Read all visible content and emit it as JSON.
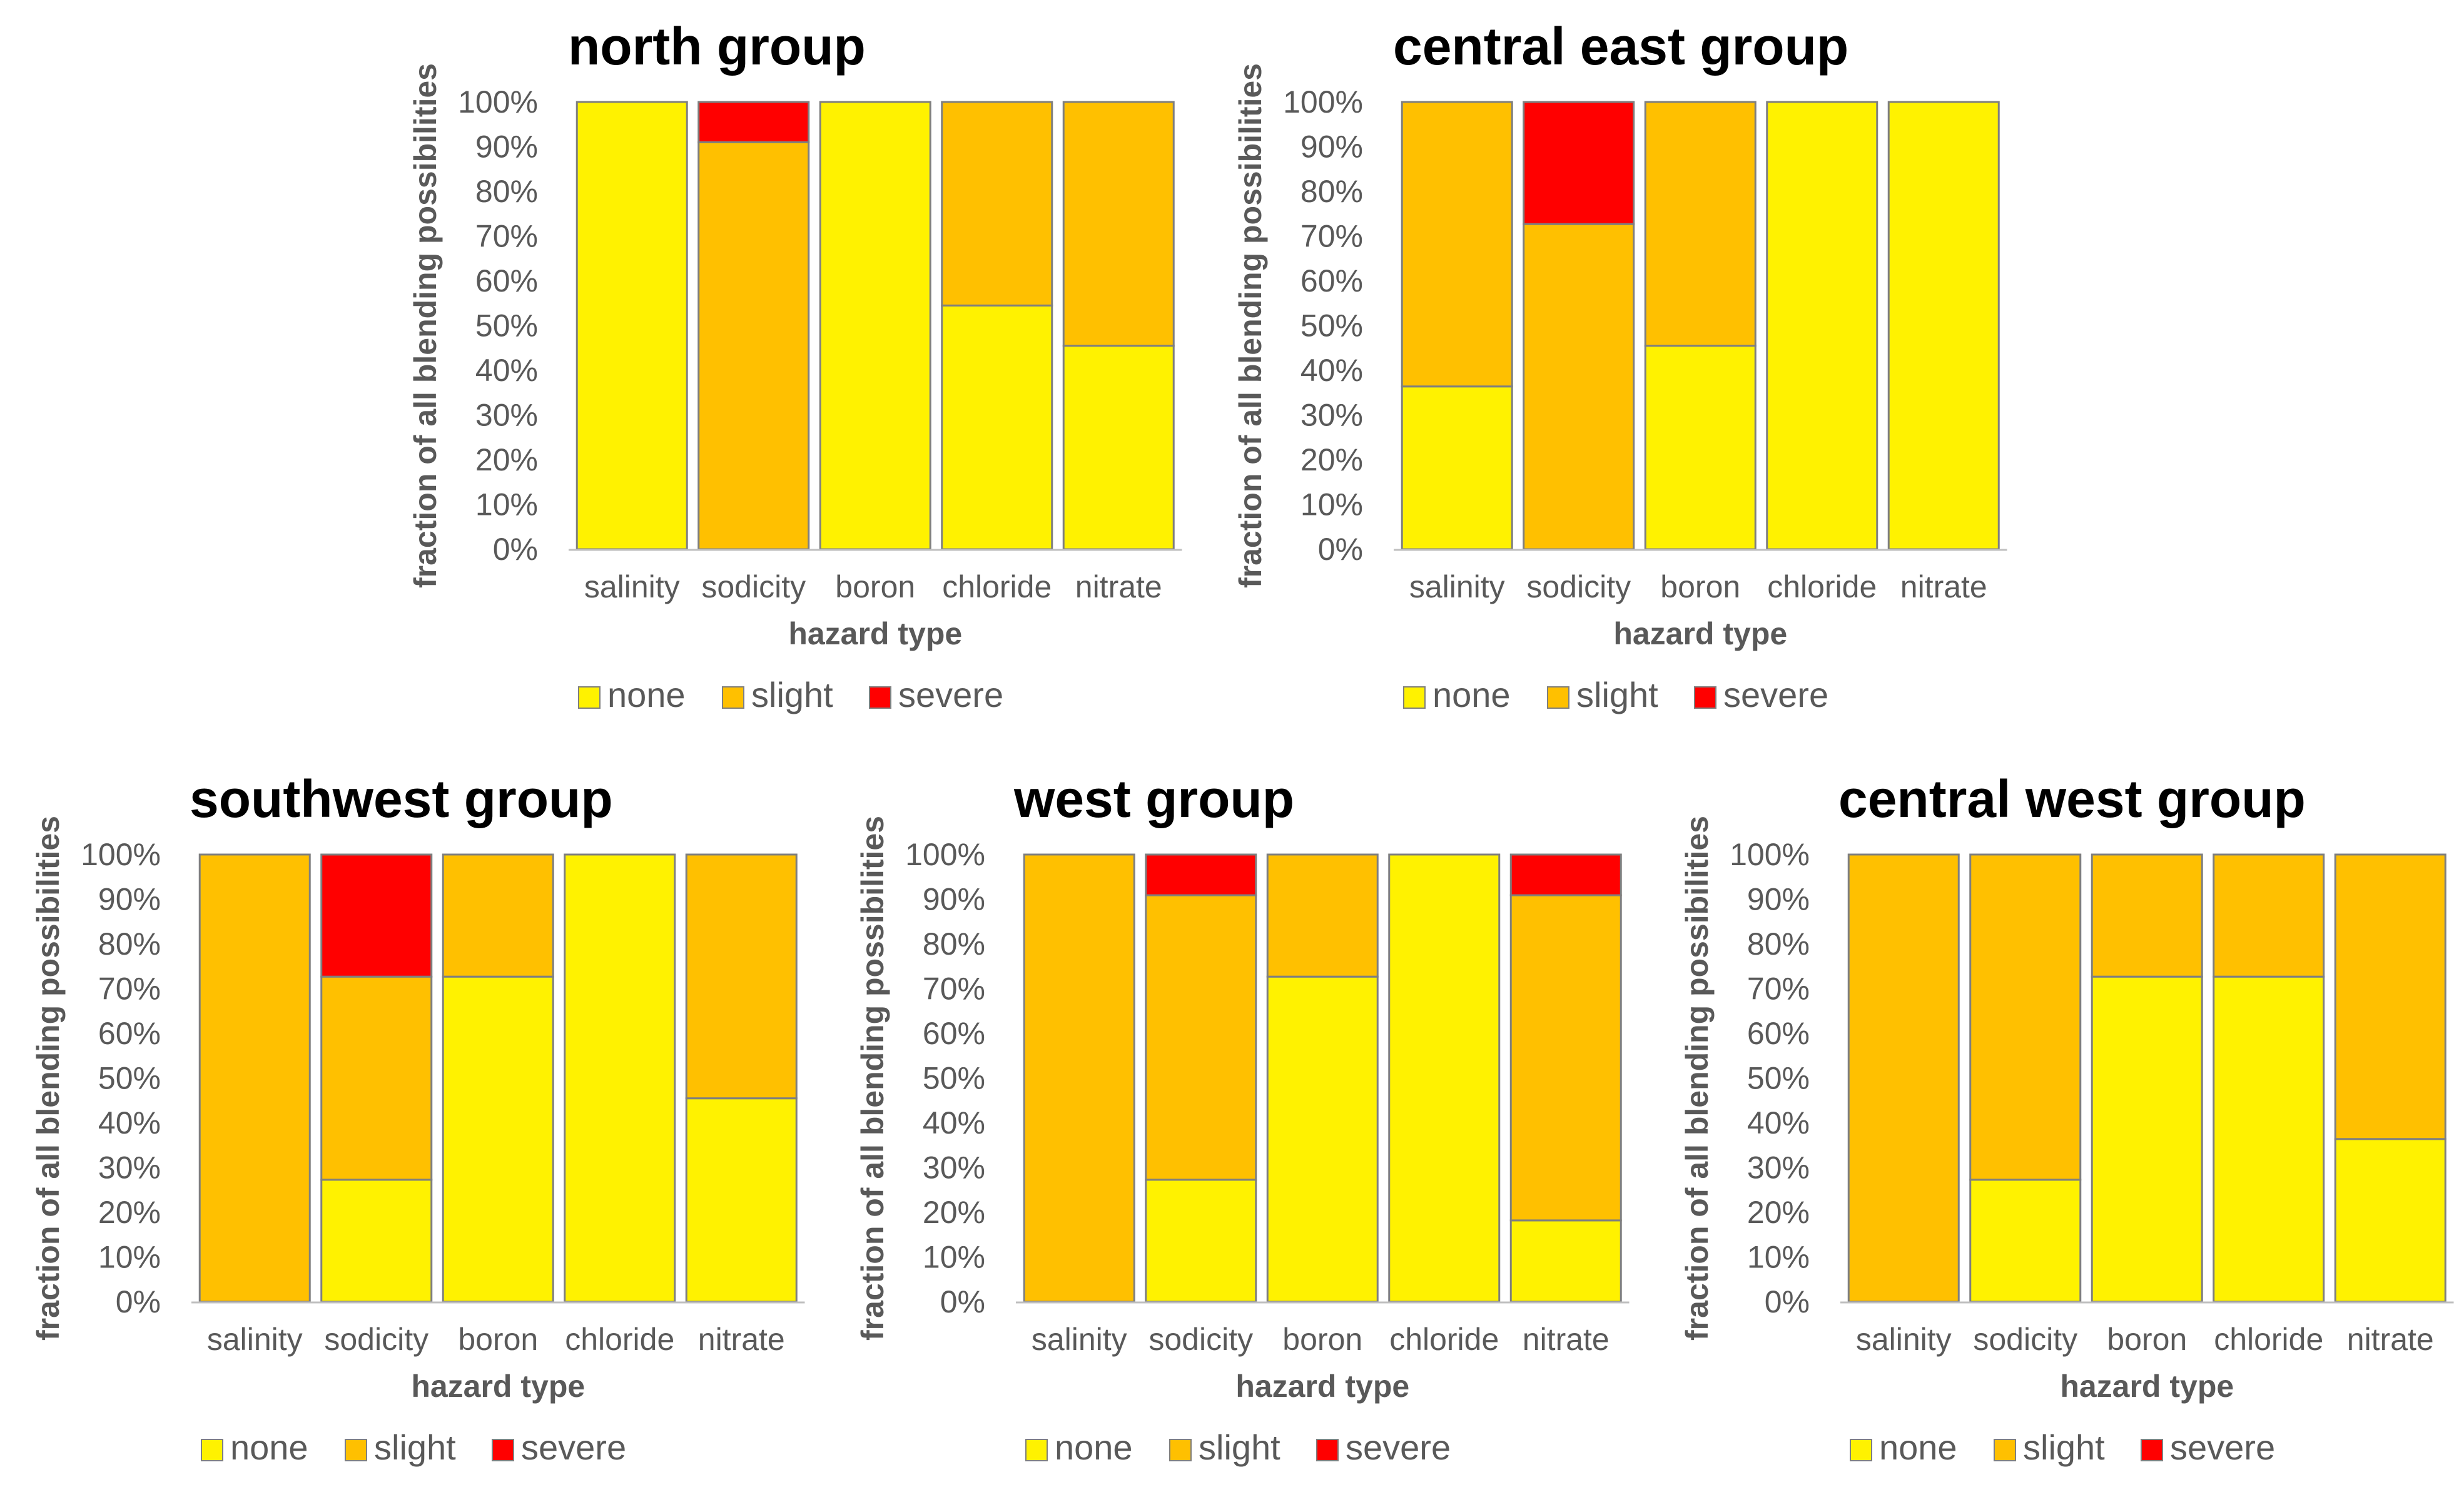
{
  "colors": {
    "none": "#FFF200",
    "slight": "#FFC000",
    "severe": "#FF0000",
    "bar_stroke": "#7F7F7F",
    "axis": "#BFBFBF"
  },
  "chart_data": [
    {
      "type": "bar",
      "stacked": true,
      "title": "north group",
      "xlabel": "hazard type",
      "ylabel": "fraction of all blending possibilities",
      "categories": [
        "salinity",
        "sodicity",
        "boron",
        "chloride",
        "nitrate"
      ],
      "yticks": [
        "0%",
        "10%",
        "20%",
        "30%",
        "40%",
        "50%",
        "60%",
        "70%",
        "80%",
        "90%",
        "100%"
      ],
      "ylim": [
        0,
        100
      ],
      "series": [
        {
          "name": "none",
          "values": [
            100,
            0,
            100,
            54.5,
            45.5
          ]
        },
        {
          "name": "slight",
          "values": [
            0,
            91,
            0,
            45.5,
            54.5
          ]
        },
        {
          "name": "severe",
          "values": [
            0,
            9,
            0,
            0,
            0
          ]
        }
      ],
      "legend": [
        "none",
        "slight",
        "severe"
      ],
      "legend_position": "bottom"
    },
    {
      "type": "bar",
      "stacked": true,
      "title": "central east group",
      "xlabel": "hazard type",
      "ylabel": "fraction of all blending possibilities",
      "categories": [
        "salinity",
        "sodicity",
        "boron",
        "chloride",
        "nitrate"
      ],
      "yticks": [
        "0%",
        "10%",
        "20%",
        "30%",
        "40%",
        "50%",
        "60%",
        "70%",
        "80%",
        "90%",
        "100%"
      ],
      "ylim": [
        0,
        100
      ],
      "series": [
        {
          "name": "none",
          "values": [
            36.4,
            0,
            45.5,
            100,
            100
          ]
        },
        {
          "name": "slight",
          "values": [
            63.6,
            72.7,
            54.5,
            0,
            0
          ]
        },
        {
          "name": "severe",
          "values": [
            0,
            27.3,
            0,
            0,
            0
          ]
        }
      ],
      "legend": [
        "none",
        "slight",
        "severe"
      ],
      "legend_position": "bottom"
    },
    {
      "type": "bar",
      "stacked": true,
      "title": "southwest group",
      "xlabel": "hazard type",
      "ylabel": "fraction of all blending possibilities",
      "categories": [
        "salinity",
        "sodicity",
        "boron",
        "chloride",
        "nitrate"
      ],
      "yticks": [
        "0%",
        "10%",
        "20%",
        "30%",
        "40%",
        "50%",
        "60%",
        "70%",
        "80%",
        "90%",
        "100%"
      ],
      "ylim": [
        0,
        100
      ],
      "series": [
        {
          "name": "none",
          "values": [
            0,
            27.3,
            72.7,
            100,
            45.5
          ]
        },
        {
          "name": "slight",
          "values": [
            100,
            45.4,
            27.3,
            0,
            54.5
          ]
        },
        {
          "name": "severe",
          "values": [
            0,
            27.3,
            0,
            0,
            0
          ]
        }
      ],
      "legend": [
        "none",
        "slight",
        "severe"
      ],
      "legend_position": "bottom"
    },
    {
      "type": "bar",
      "stacked": true,
      "title": "west group",
      "xlabel": "hazard type",
      "ylabel": "fraction of all blending possibilities",
      "categories": [
        "salinity",
        "sodicity",
        "boron",
        "chloride",
        "nitrate"
      ],
      "yticks": [
        "0%",
        "10%",
        "20%",
        "30%",
        "40%",
        "50%",
        "60%",
        "70%",
        "80%",
        "90%",
        "100%"
      ],
      "ylim": [
        0,
        100
      ],
      "series": [
        {
          "name": "none",
          "values": [
            0,
            27.3,
            72.7,
            100,
            18.2
          ]
        },
        {
          "name": "slight",
          "values": [
            100,
            63.6,
            27.3,
            0,
            72.7
          ]
        },
        {
          "name": "severe",
          "values": [
            0,
            9.1,
            0,
            0,
            9.1
          ]
        }
      ],
      "legend": [
        "none",
        "slight",
        "severe"
      ],
      "legend_position": "bottom"
    },
    {
      "type": "bar",
      "stacked": true,
      "title": "central west group",
      "xlabel": "hazard type",
      "ylabel": "fraction of all blending possibilities",
      "categories": [
        "salinity",
        "sodicity",
        "boron",
        "chloride",
        "nitrate"
      ],
      "yticks": [
        "0%",
        "10%",
        "20%",
        "30%",
        "40%",
        "50%",
        "60%",
        "70%",
        "80%",
        "90%",
        "100%"
      ],
      "ylim": [
        0,
        100
      ],
      "series": [
        {
          "name": "none",
          "values": [
            0,
            27.3,
            72.7,
            72.7,
            36.4
          ]
        },
        {
          "name": "slight",
          "values": [
            100,
            72.7,
            27.3,
            27.3,
            63.6
          ]
        },
        {
          "name": "severe",
          "values": [
            0,
            0,
            0,
            0,
            0
          ]
        }
      ],
      "legend": [
        "none",
        "slight",
        "severe"
      ],
      "legend_position": "bottom"
    }
  ]
}
